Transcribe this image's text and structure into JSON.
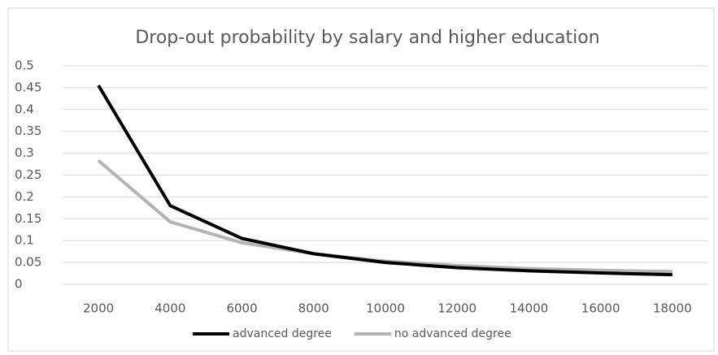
{
  "chart_data": {
    "type": "line",
    "title": "Drop-out probability by salary and higher education",
    "categories": [
      "2000",
      "4000",
      "6000",
      "8000",
      "10000",
      "12000",
      "14000",
      "16000",
      "18000"
    ],
    "series": [
      {
        "name": "advanced degree",
        "color": "#000000",
        "values": [
          0.455,
          0.18,
          0.105,
          0.07,
          0.05,
          0.038,
          0.031,
          0.026,
          0.022
        ]
      },
      {
        "name": "no advanced degree",
        "color": "#b4b4b4",
        "values": [
          0.283,
          0.143,
          0.095,
          0.07,
          0.053,
          0.043,
          0.036,
          0.032,
          0.029
        ]
      }
    ],
    "ylim": [
      0,
      0.5
    ],
    "yticks": [
      0,
      0.05,
      0.1,
      0.15,
      0.2,
      0.25,
      0.3,
      0.35,
      0.4,
      0.45,
      0.5
    ],
    "grid": true,
    "legend": "bottom"
  }
}
